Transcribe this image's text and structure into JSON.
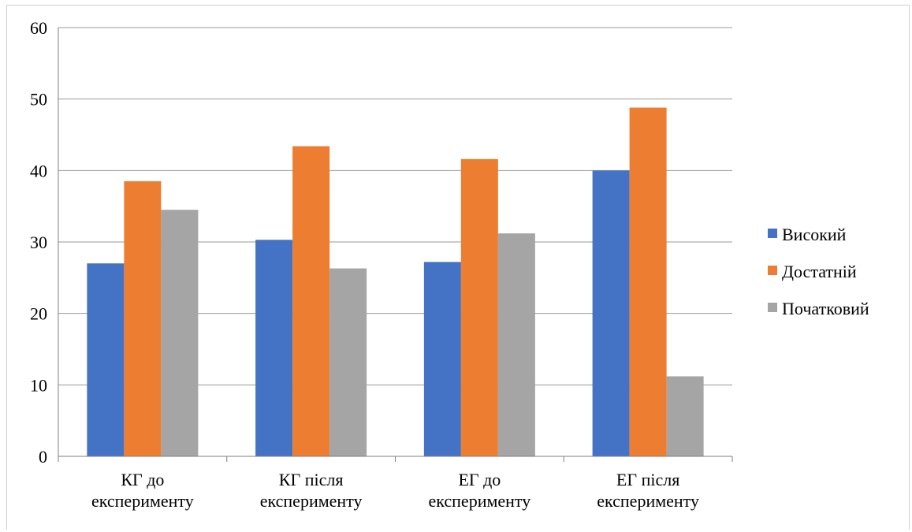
{
  "chart_data": {
    "type": "bar",
    "title": "",
    "xlabel": "",
    "ylabel": "",
    "categories": [
      [
        "КГ до",
        "експерименту"
      ],
      [
        "КГ після",
        "експерименту"
      ],
      [
        "ЕГ до",
        "експерименту"
      ],
      [
        "ЕГ після",
        "експерименту"
      ]
    ],
    "series": [
      {
        "name": "Високий",
        "color": "#4472C4",
        "values": [
          27,
          30.3,
          27.2,
          40
        ]
      },
      {
        "name": "Достатній",
        "color": "#ED7D31",
        "values": [
          38.5,
          43.4,
          41.6,
          48.8
        ]
      },
      {
        "name": "Початковий",
        "color": "#A5A5A5",
        "values": [
          34.5,
          26.3,
          31.2,
          11.2
        ]
      }
    ],
    "ylim": [
      0,
      60
    ],
    "yticks": [
      "0",
      "10",
      "20",
      "30",
      "40",
      "50",
      "60"
    ],
    "grid": true,
    "legend_position": "right"
  }
}
